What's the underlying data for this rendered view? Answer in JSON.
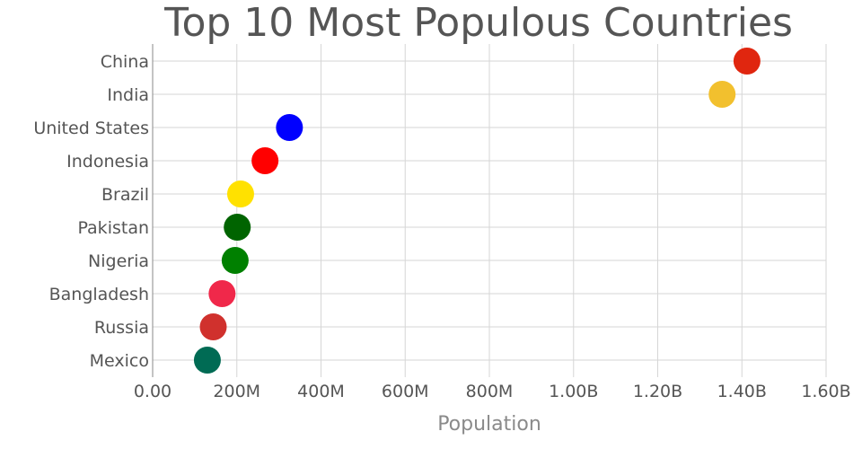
{
  "chart_data": {
    "type": "scatter",
    "title": "Top 10 Most Populous Countries",
    "xlabel": "Population",
    "ylabel": "",
    "xlim": [
      0,
      1600000000
    ],
    "xticks": [
      {
        "value": 0,
        "label": "0.00"
      },
      {
        "value": 200000000,
        "label": "200M"
      },
      {
        "value": 400000000,
        "label": "400M"
      },
      {
        "value": 600000000,
        "label": "600M"
      },
      {
        "value": 800000000,
        "label": "800M"
      },
      {
        "value": 1000000000,
        "label": "1.00B"
      },
      {
        "value": 1200000000,
        "label": "1.20B"
      },
      {
        "value": 1400000000,
        "label": "1.40B"
      },
      {
        "value": 1600000000,
        "label": "1.60B"
      }
    ],
    "grid": true,
    "legend": "none",
    "points": [
      {
        "category": "China",
        "value": 1412000000,
        "color": "#e0260f"
      },
      {
        "category": "India",
        "value": 1353000000,
        "color": "#f2c02e"
      },
      {
        "category": "United States",
        "value": 325000000,
        "color": "#0000ff"
      },
      {
        "category": "Indonesia",
        "value": 267000000,
        "color": "#ff0000"
      },
      {
        "category": "Brazil",
        "value": 209000000,
        "color": "#ffe100"
      },
      {
        "category": "Pakistan",
        "value": 201000000,
        "color": "#006400"
      },
      {
        "category": "Nigeria",
        "value": 196000000,
        "color": "#008000"
      },
      {
        "category": "Bangladesh",
        "value": 165000000,
        "color": "#f0284a"
      },
      {
        "category": "Russia",
        "value": 144000000,
        "color": "#d0312d"
      },
      {
        "category": "Mexico",
        "value": 130000000,
        "color": "#006b54"
      }
    ]
  }
}
